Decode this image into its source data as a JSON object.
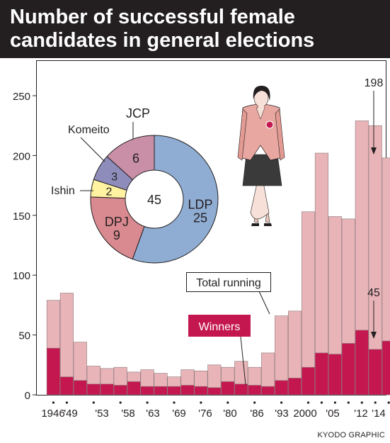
{
  "title_line1": "Number of successful female",
  "title_line2": "candidates in general elections",
  "credit": "KYODO GRAPHIC",
  "colors": {
    "winners": "#c4174f",
    "total": "#e8b4b8",
    "ldp": "#8fadd3",
    "dpj": "#d98a90",
    "ishin": "#fff2a0",
    "komeito": "#8d8cbb",
    "jcp": "#c98fa6"
  },
  "chart_data": {
    "type": "bar",
    "ylim": [
      0,
      250
    ],
    "yticks": [
      0,
      50,
      100,
      150,
      200,
      250
    ],
    "xtick_labels": [
      "1946",
      "'49",
      "'53",
      "'58",
      "'63",
      "'69",
      "'76",
      "'80",
      "'86",
      "'93",
      "2000",
      "'05",
      "'12",
      "'14"
    ],
    "series": [
      {
        "name": "Total running",
        "values": [
          79,
          85,
          44,
          24,
          22,
          23,
          19,
          21,
          18,
          15,
          21,
          20,
          25,
          23,
          28,
          23,
          35,
          66,
          70,
          153,
          202,
          149,
          147,
          229,
          225,
          198
        ]
      },
      {
        "name": "Winners",
        "values": [
          39,
          15,
          12,
          9,
          9,
          8,
          11,
          7,
          7,
          7,
          8,
          7,
          6,
          11,
          9,
          8,
          7,
          12,
          14,
          23,
          35,
          34,
          43,
          54,
          38,
          45
        ]
      }
    ],
    "annotations": {
      "total_running": "Total running",
      "winners": "Winners",
      "total_2014": "198",
      "winners_2014": "45"
    }
  },
  "pie_data": {
    "type": "pie",
    "center_label": "45",
    "slices": [
      {
        "label": "LDP",
        "value": 25,
        "color_key": "ldp"
      },
      {
        "label": "DPJ",
        "value": 9,
        "color_key": "dpj"
      },
      {
        "label": "Ishin",
        "value": 2,
        "color_key": "ishin"
      },
      {
        "label": "Komeito",
        "value": 3,
        "color_key": "komeito"
      },
      {
        "label": "JCP",
        "value": 6,
        "color_key": "jcp"
      }
    ]
  }
}
